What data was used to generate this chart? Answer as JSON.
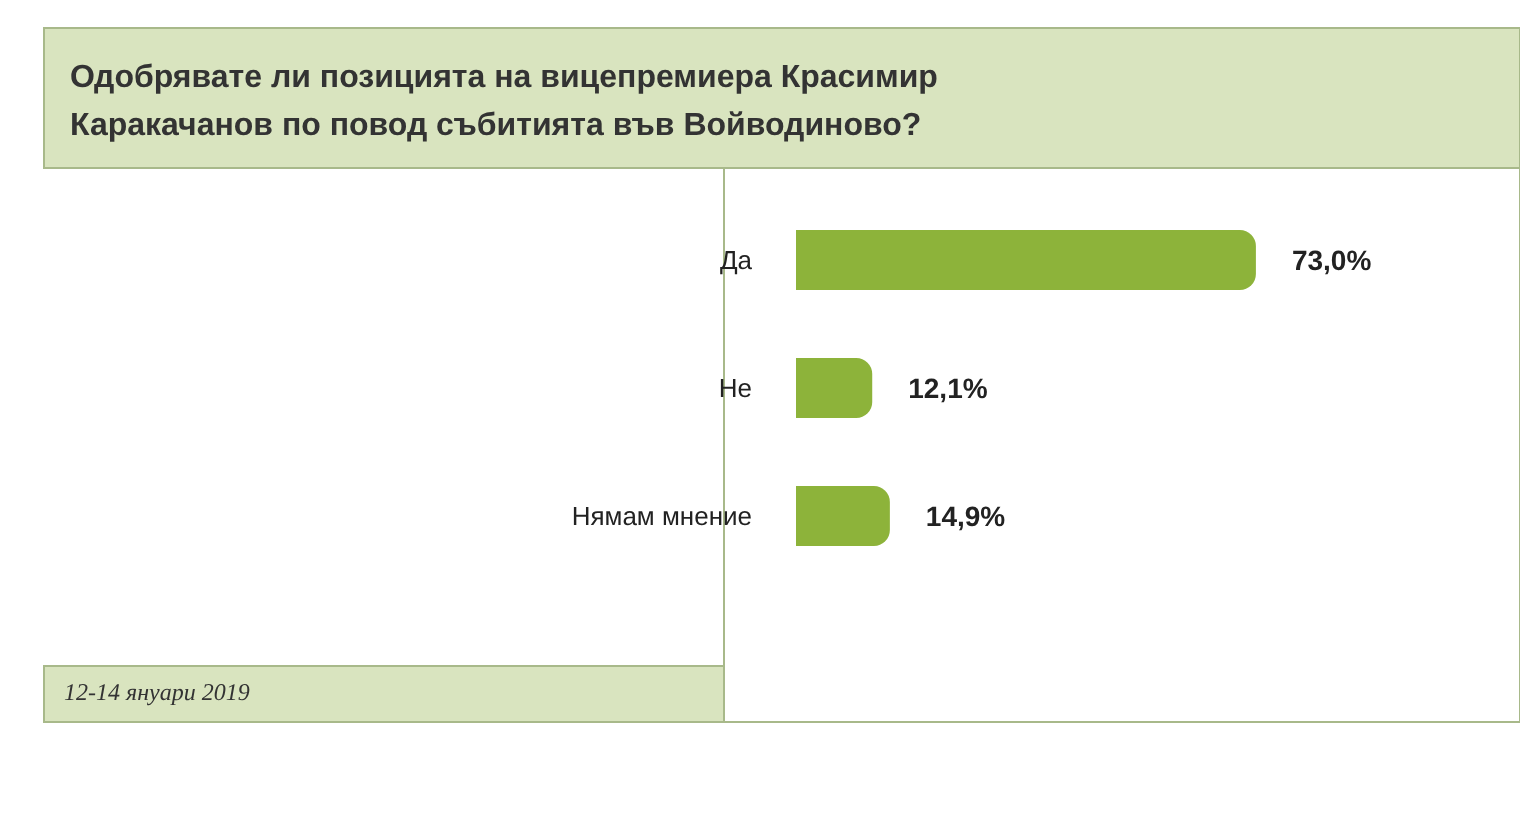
{
  "chart_data": {
    "type": "bar",
    "orientation": "horizontal",
    "title": "Одобрявате ли позицията на вицепремиера Красимир Каракачанов по повод събитията във Войводиново?",
    "categories": [
      "Да",
      "Не",
      "Нямам мнение"
    ],
    "values": [
      73.0,
      12.1,
      14.9
    ],
    "value_labels": [
      "73,0%",
      "12,1%",
      "14,9%"
    ],
    "color": "#8db33a",
    "annotations": [
      "12-14 януари 2019"
    ]
  }
}
